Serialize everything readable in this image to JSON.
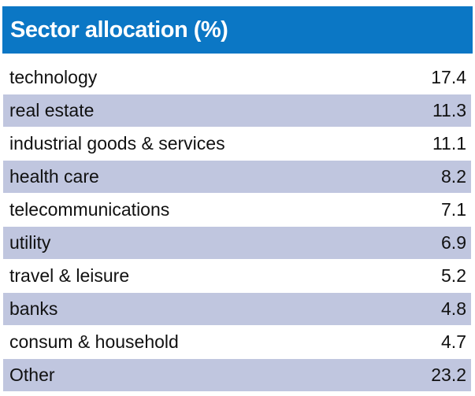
{
  "title": "Sector allocation (%)",
  "colors": {
    "header": "#0b77c5",
    "alt_row": "#c0c6df"
  },
  "rows": [
    {
      "label": "technology",
      "value": "17.4"
    },
    {
      "label": "real estate",
      "value": "11.3"
    },
    {
      "label": "industrial goods & services",
      "value": "11.1"
    },
    {
      "label": "health care",
      "value": "8.2"
    },
    {
      "label": "telecommunications",
      "value": "7.1"
    },
    {
      "label": "utility",
      "value": "6.9"
    },
    {
      "label": "travel & leisure",
      "value": "5.2"
    },
    {
      "label": "banks",
      "value": "4.8"
    },
    {
      "label": "consum & household",
      "value": "4.7"
    },
    {
      "label": "Other",
      "value": "23.2"
    }
  ]
}
